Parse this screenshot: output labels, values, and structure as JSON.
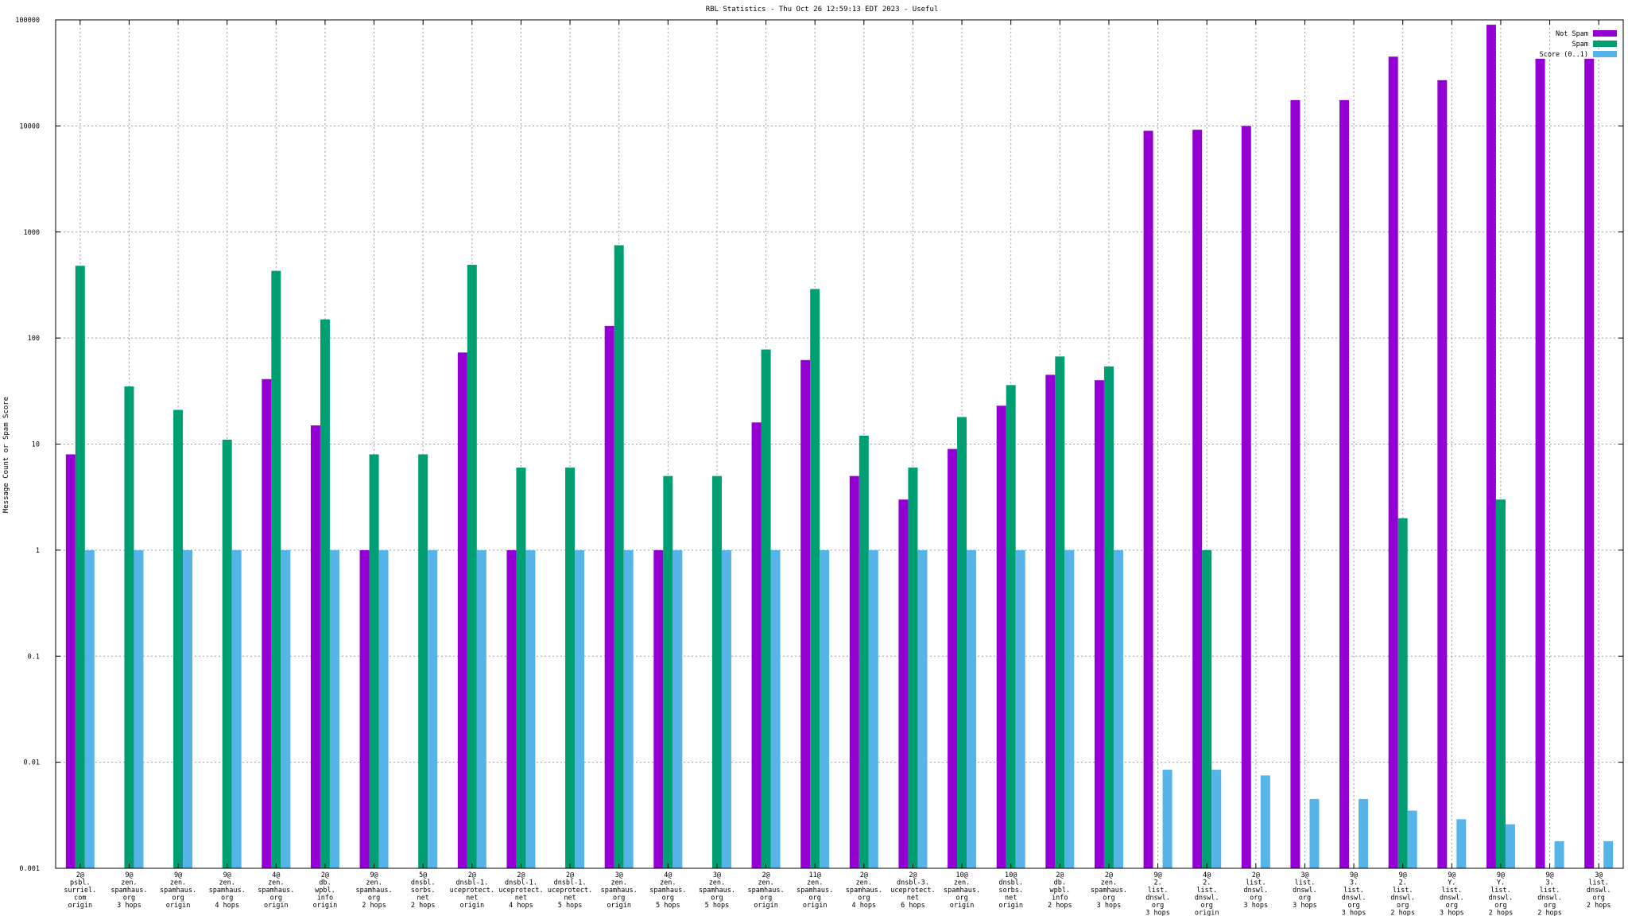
{
  "chart_data": {
    "type": "bar",
    "title": "RBL Statistics - Thu Oct 26 12:59:13 EDT 2023 - Useful",
    "ylabel": "Message Count or Spam Score",
    "xlabel": "",
    "yscale": "log",
    "ylim": [
      0.001,
      100000
    ],
    "yticks": [
      "0.001",
      "0.01",
      "0.1",
      "1",
      "10",
      "100",
      "1000",
      "10000",
      "100000"
    ],
    "grid": true,
    "legend_position": "top-right",
    "categories": [
      [
        "2@",
        "psbl.",
        "surriel.",
        "com",
        "origin"
      ],
      [
        "9@",
        "zen.",
        "spamhaus.",
        "org",
        "3 hops"
      ],
      [
        "9@",
        "zen.",
        "spamhaus.",
        "org",
        "origin"
      ],
      [
        "9@",
        "zen.",
        "spamhaus.",
        "org",
        "4 hops"
      ],
      [
        "4@",
        "zen.",
        "spamhaus.",
        "org",
        "origin"
      ],
      [
        "2@",
        "db.",
        "wpbl.",
        "info",
        "origin"
      ],
      [
        "9@",
        "zen.",
        "spamhaus.",
        "org",
        "2 hops"
      ],
      [
        "5@",
        "dnsbl.",
        "sorbs.",
        "net",
        "2 hops"
      ],
      [
        "2@",
        "dnsbl-1.",
        "uceprotect.",
        "net",
        "origin"
      ],
      [
        "2@",
        "dnsbl-1.",
        "uceprotect.",
        "net",
        "4 hops"
      ],
      [
        "2@",
        "dnsbl-1.",
        "uceprotect.",
        "net",
        "5 hops"
      ],
      [
        "3@",
        "zen.",
        "spamhaus.",
        "org",
        "origin"
      ],
      [
        "4@",
        "zen.",
        "spamhaus.",
        "org",
        "5 hops"
      ],
      [
        "3@",
        "zen.",
        "spamhaus.",
        "org",
        "5 hops"
      ],
      [
        "2@",
        "zen.",
        "spamhaus.",
        "org",
        "origin"
      ],
      [
        "11@",
        "zen.",
        "spamhaus.",
        "org",
        "origin"
      ],
      [
        "2@",
        "zen.",
        "spamhaus.",
        "org",
        "4 hops"
      ],
      [
        "2@",
        "dnsbl-3.",
        "uceprotect.",
        "net",
        "6 hops"
      ],
      [
        "10@",
        "zen.",
        "spamhaus.",
        "org",
        "origin"
      ],
      [
        "10@",
        "dnsbl.",
        "sorbs.",
        "net",
        "origin"
      ],
      [
        "2@",
        "db.",
        "wpbl.",
        "info",
        "2 hops"
      ],
      [
        "2@",
        "zen.",
        "spamhaus.",
        "org",
        "3 hops"
      ],
      [
        "9@",
        "2.",
        "list.",
        "dnswl.",
        "org",
        "3 hops"
      ],
      [
        "4@",
        "2.",
        "list.",
        "dnswl.",
        "org",
        "origin"
      ],
      [
        "2@",
        "list.",
        "dnswl.",
        "org",
        "3 hops"
      ],
      [
        "3@",
        "list.",
        "dnswl.",
        "org",
        "3 hops"
      ],
      [
        "9@",
        "3.",
        "list.",
        "dnswl.",
        "org",
        "3 hops"
      ],
      [
        "9@",
        "2.",
        "list.",
        "dnswl.",
        "org",
        "2 hops"
      ],
      [
        "9@",
        "Y.",
        "list.",
        "dnswl.",
        "org",
        "3 hops"
      ],
      [
        "9@",
        "Y.",
        "list.",
        "dnswl.",
        "org",
        "2 hops"
      ],
      [
        "9@",
        "3.",
        "list.",
        "dnswl.",
        "org",
        "2 hops"
      ],
      [
        "3@",
        "list.",
        "dnswl.",
        "org",
        "2 hops"
      ]
    ],
    "series": [
      {
        "name": "Not Spam",
        "color": "#9400d3",
        "values": [
          8,
          null,
          null,
          null,
          41,
          15,
          1,
          null,
          73,
          1,
          null,
          130,
          1,
          null,
          16,
          62,
          5,
          3,
          9,
          23,
          45,
          40,
          9000,
          9200,
          10000,
          17500,
          17500,
          45000,
          27000,
          90000,
          43000,
          43000
        ]
      },
      {
        "name": "Spam",
        "color": "#009e73",
        "values": [
          480,
          35,
          21,
          11,
          430,
          150,
          8,
          8,
          490,
          6,
          6,
          750,
          5,
          5,
          78,
          290,
          12,
          6,
          18,
          36,
          67,
          54,
          null,
          1,
          null,
          null,
          null,
          2,
          null,
          3,
          null,
          null
        ]
      },
      {
        "name": "Score (0..1)",
        "color": "#56b4e9",
        "values": [
          1,
          1,
          1,
          1,
          1,
          1,
          1,
          1,
          1,
          1,
          1,
          1,
          1,
          1,
          1,
          1,
          1,
          1,
          1,
          1,
          1,
          1,
          0.0085,
          0.0085,
          0.0075,
          0.0045,
          0.0045,
          0.0035,
          0.0029,
          0.0026,
          0.0018,
          0.0018
        ]
      }
    ]
  }
}
